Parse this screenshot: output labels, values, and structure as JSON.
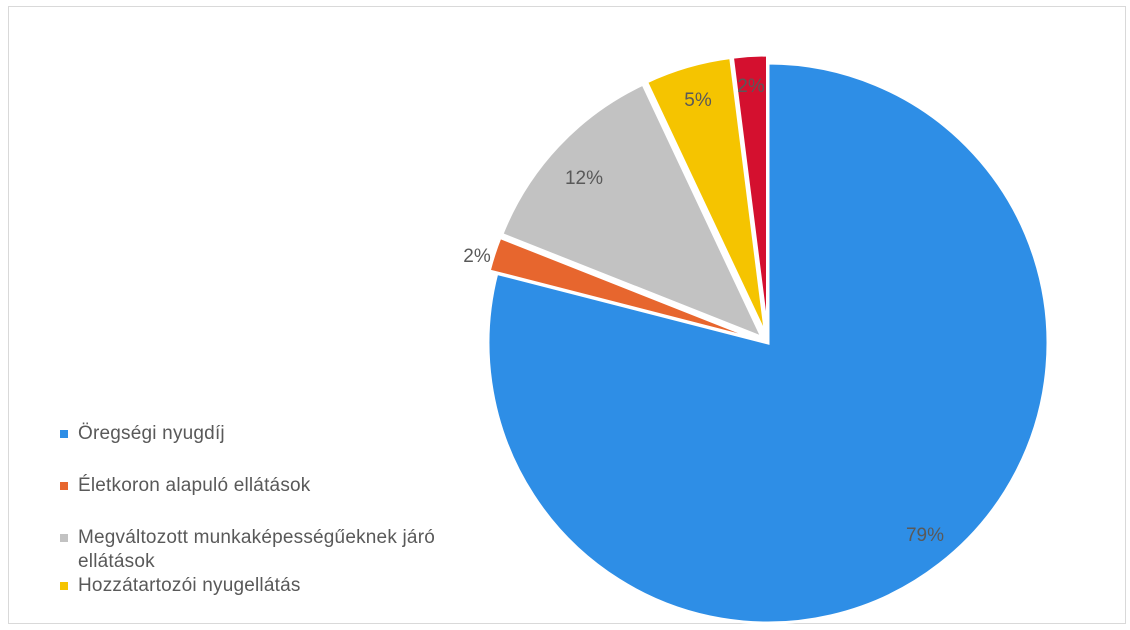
{
  "chart_data": {
    "type": "pie",
    "start_angle_deg": 0,
    "direction": "clockwise",
    "slices": [
      {
        "name": "Öregségi nyugdíj",
        "value": 79,
        "label": "79%",
        "color": "#2e8ee6"
      },
      {
        "name": "Életkoron alapuló ellátások",
        "value": 2,
        "label": "2%",
        "color": "#e7662e"
      },
      {
        "name": "Megváltozott munkaképességűeknek járó ellátások",
        "value": 12,
        "label": "12%",
        "color": "#c2c2c2"
      },
      {
        "name": "Hozzátartozói nyugellátás",
        "value": 5,
        "label": "5%",
        "color": "#f5c400"
      },
      {
        "name": "",
        "value": 2,
        "label": "2%",
        "color": "#d4102f"
      }
    ],
    "legend": {
      "placement": "bottom-left",
      "items": [
        {
          "label": "Öregségi nyugdíj",
          "color": "#2e8ee6"
        },
        {
          "label": "Életkoron alapuló ellátások",
          "color": "#e7662e"
        },
        {
          "label": "Megváltozott munkaképességűeknek járó ellátások",
          "color": "#c2c2c2"
        },
        {
          "label": "Hozzátartozói nyugellátás",
          "color": "#f5c400"
        }
      ]
    }
  }
}
